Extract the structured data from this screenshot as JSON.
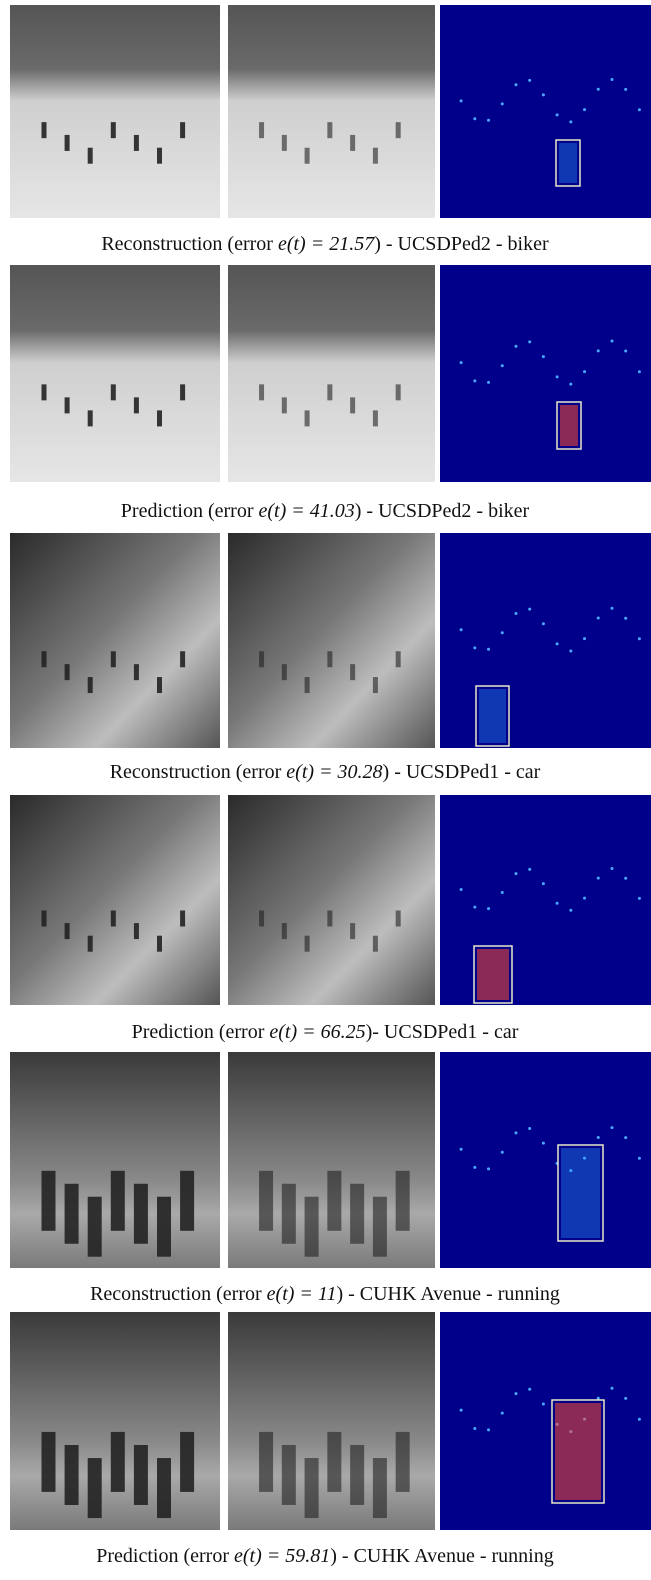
{
  "rows": [
    {
      "prefix": "Reconstruction (error ",
      "math": "e(t) = 21.57",
      "suffix": ") - UCSDPed2 - biker"
    },
    {
      "prefix": "Prediction (error ",
      "math": "e(t) = 41.03",
      "suffix": ") - UCSDPed2 - biker"
    },
    {
      "prefix": "Reconstruction (error ",
      "math": "e(t) = 30.28",
      "suffix": ") - UCSDPed1 - car"
    },
    {
      "prefix": "Prediction (error ",
      "math": "e(t) = 66.25",
      "suffix": ")- UCSDPed1 - car"
    },
    {
      "prefix": "Reconstruction (error ",
      "math": "e(t) = 11",
      "suffix": ") - CUHK Avenue - running"
    },
    {
      "prefix": "Prediction (error ",
      "math": "e(t) = 59.81",
      "suffix": ") - CUHK Avenue - running"
    }
  ]
}
